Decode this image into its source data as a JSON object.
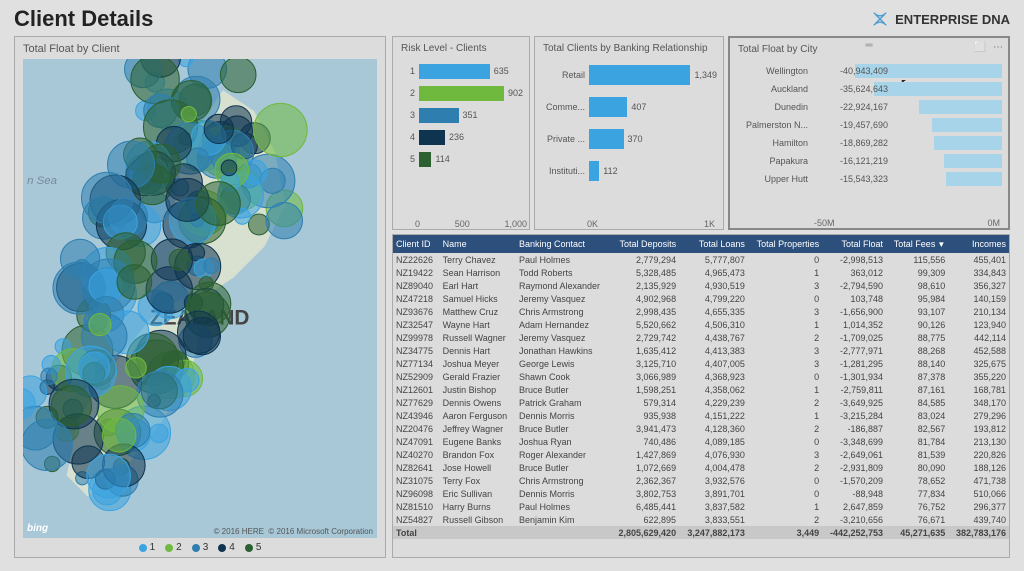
{
  "header": {
    "title": "Client Details",
    "logo_text": "ENTERPRISE DNA"
  },
  "map": {
    "title": "Total Float by Client",
    "country_label": "ZEALAND",
    "sea_label": "n Sea",
    "attribution1": "© 2016 HERE",
    "attribution2": "© 2016 Microsoft Corporation",
    "bing_label": "bing",
    "legend": [
      {
        "label": "1",
        "color": "#3aa3e0"
      },
      {
        "label": "2",
        "color": "#6fb93f"
      },
      {
        "label": "3",
        "color": "#2e7fb0"
      },
      {
        "label": "4",
        "color": "#0f3450"
      },
      {
        "label": "5",
        "color": "#2b6030"
      }
    ],
    "background": "#a8c8d8",
    "land_color": "#d8e0d0"
  },
  "risk_chart": {
    "title": "Risk Level - Clients",
    "bars": [
      {
        "label": "1",
        "value": 635,
        "color": "#3aa3e0",
        "pct": 68
      },
      {
        "label": "2",
        "value": 902,
        "color": "#6fb93f",
        "pct": 97
      },
      {
        "label": "3",
        "value": 351,
        "color": "#2e7fb0",
        "pct": 38
      },
      {
        "label": "4",
        "value": 236,
        "color": "#0f3450",
        "pct": 25
      },
      {
        "label": "5",
        "value": 114,
        "color": "#2b6030",
        "pct": 12
      }
    ],
    "axis": [
      "0",
      "500",
      "1,000"
    ]
  },
  "banking_chart": {
    "title": "Total Clients by Banking Relationship",
    "bar_color": "#3aa3e0",
    "bars": [
      {
        "label": "Retail",
        "value": "1,349",
        "pct": 98
      },
      {
        "label": "Comme...",
        "value": "407",
        "pct": 30
      },
      {
        "label": "Private ...",
        "value": "370",
        "pct": 27
      },
      {
        "label": "Instituti...",
        "value": "112",
        "pct": 8
      }
    ],
    "axis": [
      "0K",
      "1K"
    ]
  },
  "float_chart": {
    "title": "Total Float by City",
    "bar_color": "#a7d4e8",
    "bars": [
      {
        "label": "Wellington",
        "value": "-40,943,409",
        "pct": 78
      },
      {
        "label": "Auckland",
        "value": "-35,624,643",
        "pct": 68
      },
      {
        "label": "Dunedin",
        "value": "-22,924,167",
        "pct": 44
      },
      {
        "label": "Palmerston N...",
        "value": "-19,457,690",
        "pct": 37
      },
      {
        "label": "Hamilton",
        "value": "-18,869,282",
        "pct": 36
      },
      {
        "label": "Papakura",
        "value": "-16,121,219",
        "pct": 31
      },
      {
        "label": "Upper Hutt",
        "value": "-15,543,323",
        "pct": 30
      }
    ],
    "axis": [
      "-50M",
      "0M"
    ]
  },
  "table": {
    "columns": [
      "Client ID",
      "Name",
      "Banking Contact",
      "Total Deposits",
      "Total Loans",
      "Total Properties",
      "Total Float",
      "Total Fees",
      "Incomes"
    ],
    "sorted_col": 7,
    "rows": [
      [
        "NZ22626",
        "Terry Chavez",
        "Paul Holmes",
        "2,779,294",
        "5,777,807",
        "0",
        "-2,998,513",
        "115,556",
        "455,401"
      ],
      [
        "NZ19422",
        "Sean Harrison",
        "Todd Roberts",
        "5,328,485",
        "4,965,473",
        "1",
        "363,012",
        "99,309",
        "334,843"
      ],
      [
        "NZ89040",
        "Earl Hart",
        "Raymond Alexander",
        "2,135,929",
        "4,930,519",
        "3",
        "-2,794,590",
        "98,610",
        "356,327"
      ],
      [
        "NZ47218",
        "Samuel Hicks",
        "Jeremy Vasquez",
        "4,902,968",
        "4,799,220",
        "0",
        "103,748",
        "95,984",
        "140,159"
      ],
      [
        "NZ93676",
        "Matthew Cruz",
        "Chris Armstrong",
        "2,998,435",
        "4,655,335",
        "3",
        "-1,656,900",
        "93,107",
        "210,134"
      ],
      [
        "NZ32547",
        "Wayne Hart",
        "Adam Hernandez",
        "5,520,662",
        "4,506,310",
        "1",
        "1,014,352",
        "90,126",
        "123,940"
      ],
      [
        "NZ99978",
        "Russell Wagner",
        "Jeremy Vasquez",
        "2,729,742",
        "4,438,767",
        "2",
        "-1,709,025",
        "88,775",
        "442,114"
      ],
      [
        "NZ34775",
        "Dennis Hart",
        "Jonathan Hawkins",
        "1,635,412",
        "4,413,383",
        "3",
        "-2,777,971",
        "88,268",
        "452,588"
      ],
      [
        "NZ77134",
        "Joshua Meyer",
        "George Lewis",
        "3,125,710",
        "4,407,005",
        "3",
        "-1,281,295",
        "88,140",
        "325,675"
      ],
      [
        "NZ52909",
        "Gerald Frazier",
        "Shawn Cook",
        "3,066,989",
        "4,368,923",
        "0",
        "-1,301,934",
        "87,378",
        "355,220"
      ],
      [
        "NZ12601",
        "Justin Bishop",
        "Bruce Butler",
        "1,598,251",
        "4,358,062",
        "1",
        "-2,759,811",
        "87,161",
        "168,781"
      ],
      [
        "NZ77629",
        "Dennis Owens",
        "Patrick Graham",
        "579,314",
        "4,229,239",
        "2",
        "-3,649,925",
        "84,585",
        "348,170"
      ],
      [
        "NZ43946",
        "Aaron Ferguson",
        "Dennis Morris",
        "935,938",
        "4,151,222",
        "1",
        "-3,215,284",
        "83,024",
        "279,296"
      ],
      [
        "NZ20476",
        "Jeffrey Wagner",
        "Bruce Butler",
        "3,941,473",
        "4,128,360",
        "2",
        "-186,887",
        "82,567",
        "193,812"
      ],
      [
        "NZ47091",
        "Eugene Banks",
        "Joshua Ryan",
        "740,486",
        "4,089,185",
        "0",
        "-3,348,699",
        "81,784",
        "213,130"
      ],
      [
        "NZ40270",
        "Brandon Fox",
        "Roger Alexander",
        "1,427,869",
        "4,076,930",
        "3",
        "-2,649,061",
        "81,539",
        "220,826"
      ],
      [
        "NZ82641",
        "Jose Howell",
        "Bruce Butler",
        "1,072,669",
        "4,004,478",
        "2",
        "-2,931,809",
        "80,090",
        "188,126"
      ],
      [
        "NZ31075",
        "Terry Fox",
        "Chris Armstrong",
        "2,362,367",
        "3,932,576",
        "0",
        "-1,570,209",
        "78,652",
        "471,738"
      ],
      [
        "NZ96098",
        "Eric Sullivan",
        "Dennis Morris",
        "3,802,753",
        "3,891,701",
        "0",
        "-88,948",
        "77,834",
        "510,066"
      ],
      [
        "NZ81510",
        "Harry Burns",
        "Paul Holmes",
        "6,485,441",
        "3,837,582",
        "1",
        "2,647,859",
        "76,752",
        "296,377"
      ],
      [
        "NZ54827",
        "Russell Gibson",
        "Benjamin Kim",
        "622,895",
        "3,833,551",
        "2",
        "-3,210,656",
        "76,671",
        "439,740"
      ]
    ],
    "total_row": [
      "Total",
      "",
      "",
      "2,805,629,420",
      "3,247,882,173",
      "3,449",
      "-442,252,753",
      "45,271,635",
      "382,783,176"
    ]
  }
}
